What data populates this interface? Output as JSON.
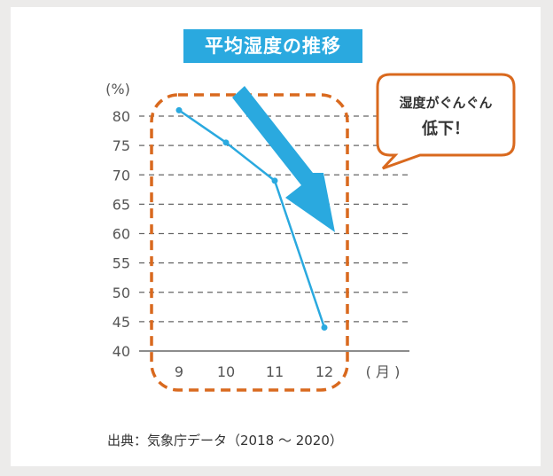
{
  "title": "平均湿度の推移",
  "callout": {
    "line1": "湿度がぐんぐん",
    "line2": "低下！"
  },
  "source": "出典：気象庁データ（2018 〜 2020）",
  "colors": {
    "title_bg": "#2aa9df",
    "line": "#2aa9df",
    "arrow": "#2aa9df",
    "highlight": "#d9691e",
    "grid": "#666666",
    "axis_text": "#555555"
  },
  "chart_data": {
    "type": "line",
    "y_unit_label": "(%)",
    "x_unit_label": "( 月 )",
    "categories": [
      "9",
      "10",
      "11",
      "12"
    ],
    "series": [
      {
        "values": [
          81,
          75.5,
          69,
          44
        ]
      }
    ],
    "ylim": [
      40,
      80
    ],
    "yticks": [
      40,
      45,
      50,
      55,
      60,
      65,
      70,
      75,
      80
    ],
    "grid": "dashed horizontal"
  }
}
